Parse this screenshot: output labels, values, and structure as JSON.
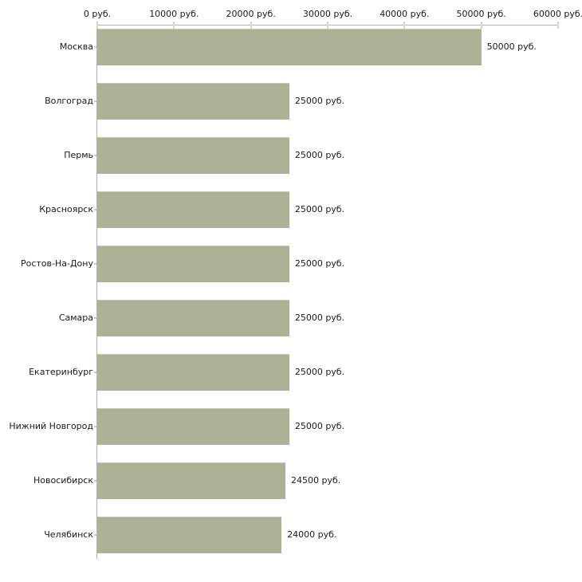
{
  "chart_data": {
    "type": "bar",
    "orientation": "horizontal",
    "title": "",
    "xlabel": "",
    "ylabel": "",
    "unit": "руб.",
    "xlim": [
      0,
      60000
    ],
    "grid": false,
    "legend": null,
    "categories": [
      "Москва",
      "Волгоград",
      "Пермь",
      "Красноярск",
      "Ростов-На-Дону",
      "Самара",
      "Екатеринбург",
      "Нижний Новгород",
      "Новосибирск",
      "Челябинск"
    ],
    "values": [
      50000,
      25000,
      25000,
      25000,
      25000,
      25000,
      25000,
      25000,
      24500,
      24000
    ],
    "value_labels": [
      "50000 руб.",
      "25000 руб.",
      "25000 руб.",
      "25000 руб.",
      "25000 руб.",
      "25000 руб.",
      "25000 руб.",
      "25000 руб.",
      "24500 руб.",
      "24000 руб."
    ],
    "x_ticks": [
      {
        "value": 0,
        "label": "0 руб."
      },
      {
        "value": 10000,
        "label": "10000 руб."
      },
      {
        "value": 20000,
        "label": "20000 руб."
      },
      {
        "value": 30000,
        "label": "30000 руб."
      },
      {
        "value": 40000,
        "label": "40000 руб."
      },
      {
        "value": 50000,
        "label": "50000 руб."
      },
      {
        "value": 60000,
        "label": "60000 руб."
      }
    ],
    "colors": {
      "bar": "#abb296",
      "bar_edge": "#c4c9b0",
      "axis_line": "#b3b3b3",
      "tick": "#d6dab8",
      "text": "#1a1a1a",
      "background": "#ffffff"
    }
  }
}
